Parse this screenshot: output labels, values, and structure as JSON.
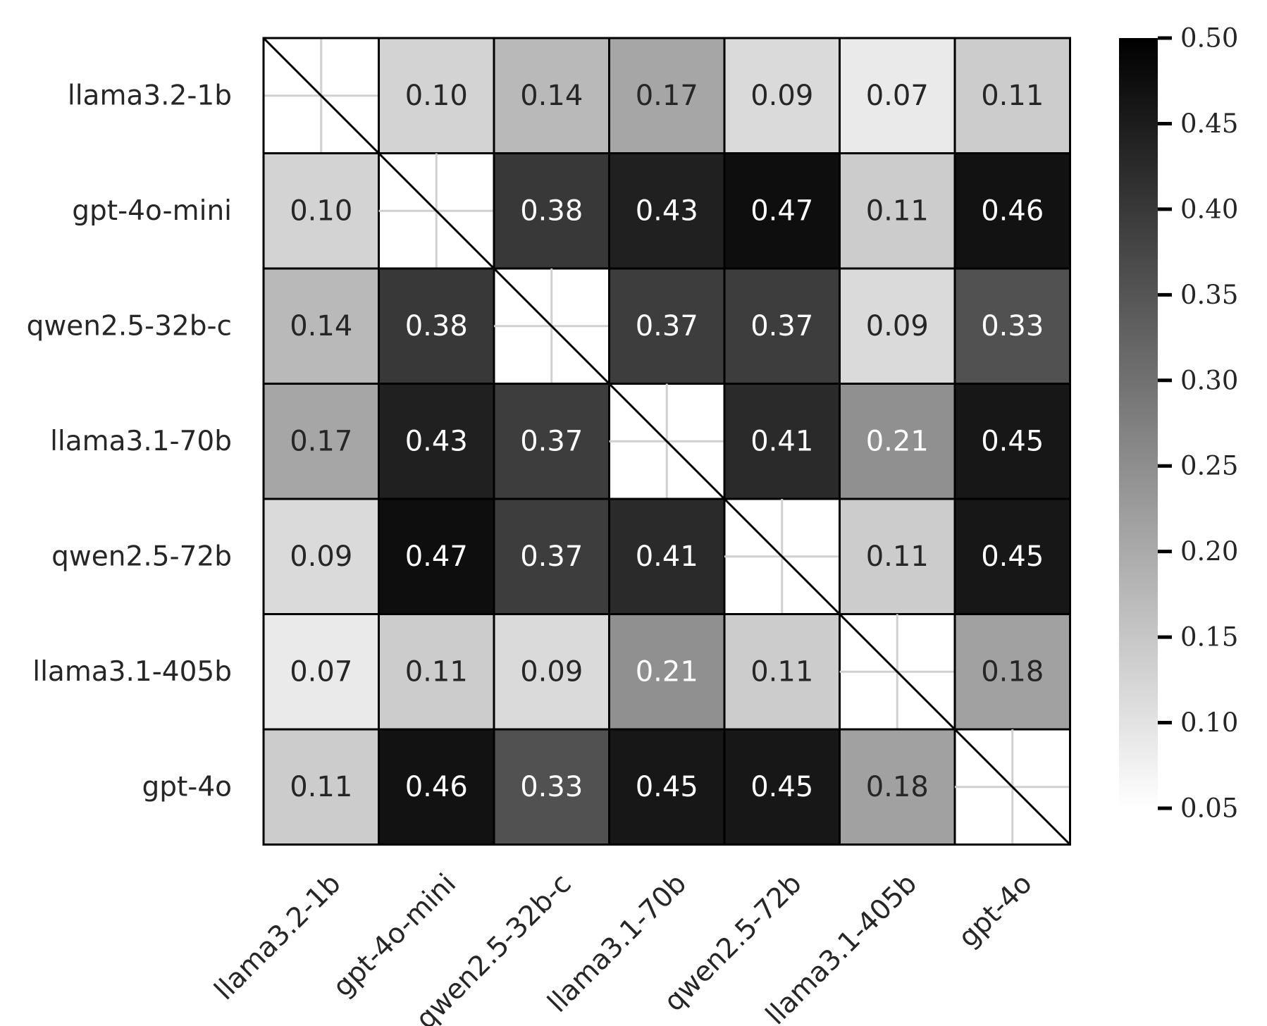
{
  "chart_data": {
    "type": "heatmap",
    "title": "",
    "xlabel": "",
    "ylabel": "",
    "row_labels": [
      "llama3.2-1b",
      "gpt-4o-mini",
      "qwen2.5-32b-c",
      "llama3.1-70b",
      "qwen2.5-72b",
      "llama3.1-405b",
      "gpt-4o"
    ],
    "col_labels": [
      "llama3.2-1b",
      "gpt-4o-mini",
      "qwen2.5-32b-c",
      "llama3.1-70b",
      "qwen2.5-72b",
      "llama3.1-405b",
      "gpt-4o"
    ],
    "values": [
      [
        null,
        0.1,
        0.14,
        0.17,
        0.09,
        0.07,
        0.11
      ],
      [
        0.1,
        null,
        0.38,
        0.43,
        0.47,
        0.11,
        0.46
      ],
      [
        0.14,
        0.38,
        null,
        0.37,
        0.37,
        0.09,
        0.33
      ],
      [
        0.17,
        0.43,
        0.37,
        null,
        0.41,
        0.21,
        0.45
      ],
      [
        0.09,
        0.47,
        0.37,
        0.41,
        null,
        0.11,
        0.45
      ],
      [
        0.07,
        0.11,
        0.09,
        0.21,
        0.11,
        null,
        0.18
      ],
      [
        0.11,
        0.46,
        0.33,
        0.45,
        0.45,
        0.18,
        null
      ]
    ],
    "value_format": "0.00",
    "diagonal": "blank with diagonal line",
    "colormap": "Greys",
    "color_low": "#ffffff",
    "color_high": "#000000",
    "text_color_dark": "#262626",
    "text_color_light": "#ffffff",
    "colorbar": {
      "vmin": 0.05,
      "vmax": 0.5,
      "ticks": [
        0.05,
        0.1,
        0.15,
        0.2,
        0.25,
        0.3,
        0.35,
        0.4,
        0.45,
        0.5
      ],
      "tick_labels": [
        "0.05",
        "0.10",
        "0.15",
        "0.20",
        "0.25",
        "0.30",
        "0.35",
        "0.40",
        "0.45",
        "0.50"
      ],
      "position": "right"
    }
  }
}
